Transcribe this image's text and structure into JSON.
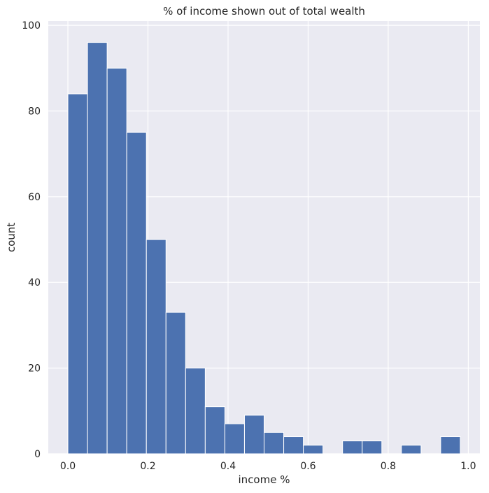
{
  "chart_data": {
    "type": "bar",
    "title": "% of income shown out of total wealth",
    "xlabel": "income %",
    "ylabel": "count",
    "xlim": [
      -0.049,
      1.029
    ],
    "ylim": [
      0,
      101
    ],
    "grid": true,
    "style": "seaborn-darkgrid",
    "bar_color": "#4c72b0",
    "background_color": "#eaeaf2",
    "grid_color": "#ffffff",
    "bins": [
      {
        "start": 0.0,
        "end": 0.049,
        "count": 84
      },
      {
        "start": 0.049,
        "end": 0.098,
        "count": 96
      },
      {
        "start": 0.098,
        "end": 0.147,
        "count": 90
      },
      {
        "start": 0.147,
        "end": 0.196,
        "count": 75
      },
      {
        "start": 0.196,
        "end": 0.245,
        "count": 50
      },
      {
        "start": 0.245,
        "end": 0.294,
        "count": 33
      },
      {
        "start": 0.294,
        "end": 0.343,
        "count": 20
      },
      {
        "start": 0.343,
        "end": 0.392,
        "count": 11
      },
      {
        "start": 0.392,
        "end": 0.441,
        "count": 7
      },
      {
        "start": 0.441,
        "end": 0.49,
        "count": 9
      },
      {
        "start": 0.49,
        "end": 0.539,
        "count": 5
      },
      {
        "start": 0.539,
        "end": 0.588,
        "count": 4
      },
      {
        "start": 0.588,
        "end": 0.637,
        "count": 2
      },
      {
        "start": 0.637,
        "end": 0.686,
        "count": 0
      },
      {
        "start": 0.686,
        "end": 0.735,
        "count": 3
      },
      {
        "start": 0.735,
        "end": 0.784,
        "count": 3
      },
      {
        "start": 0.784,
        "end": 0.833,
        "count": 0
      },
      {
        "start": 0.833,
        "end": 0.882,
        "count": 2
      },
      {
        "start": 0.882,
        "end": 0.931,
        "count": 0
      },
      {
        "start": 0.931,
        "end": 0.98,
        "count": 4
      }
    ],
    "xticks": [
      {
        "value": 0.0,
        "label": "0.0"
      },
      {
        "value": 0.2,
        "label": "0.2"
      },
      {
        "value": 0.4,
        "label": "0.4"
      },
      {
        "value": 0.6,
        "label": "0.6"
      },
      {
        "value": 0.8,
        "label": "0.8"
      },
      {
        "value": 1.0,
        "label": "1.0"
      }
    ],
    "yticks": [
      {
        "value": 0,
        "label": "0"
      },
      {
        "value": 20,
        "label": "20"
      },
      {
        "value": 40,
        "label": "40"
      },
      {
        "value": 60,
        "label": "60"
      },
      {
        "value": 80,
        "label": "80"
      },
      {
        "value": 100,
        "label": "100"
      }
    ]
  }
}
